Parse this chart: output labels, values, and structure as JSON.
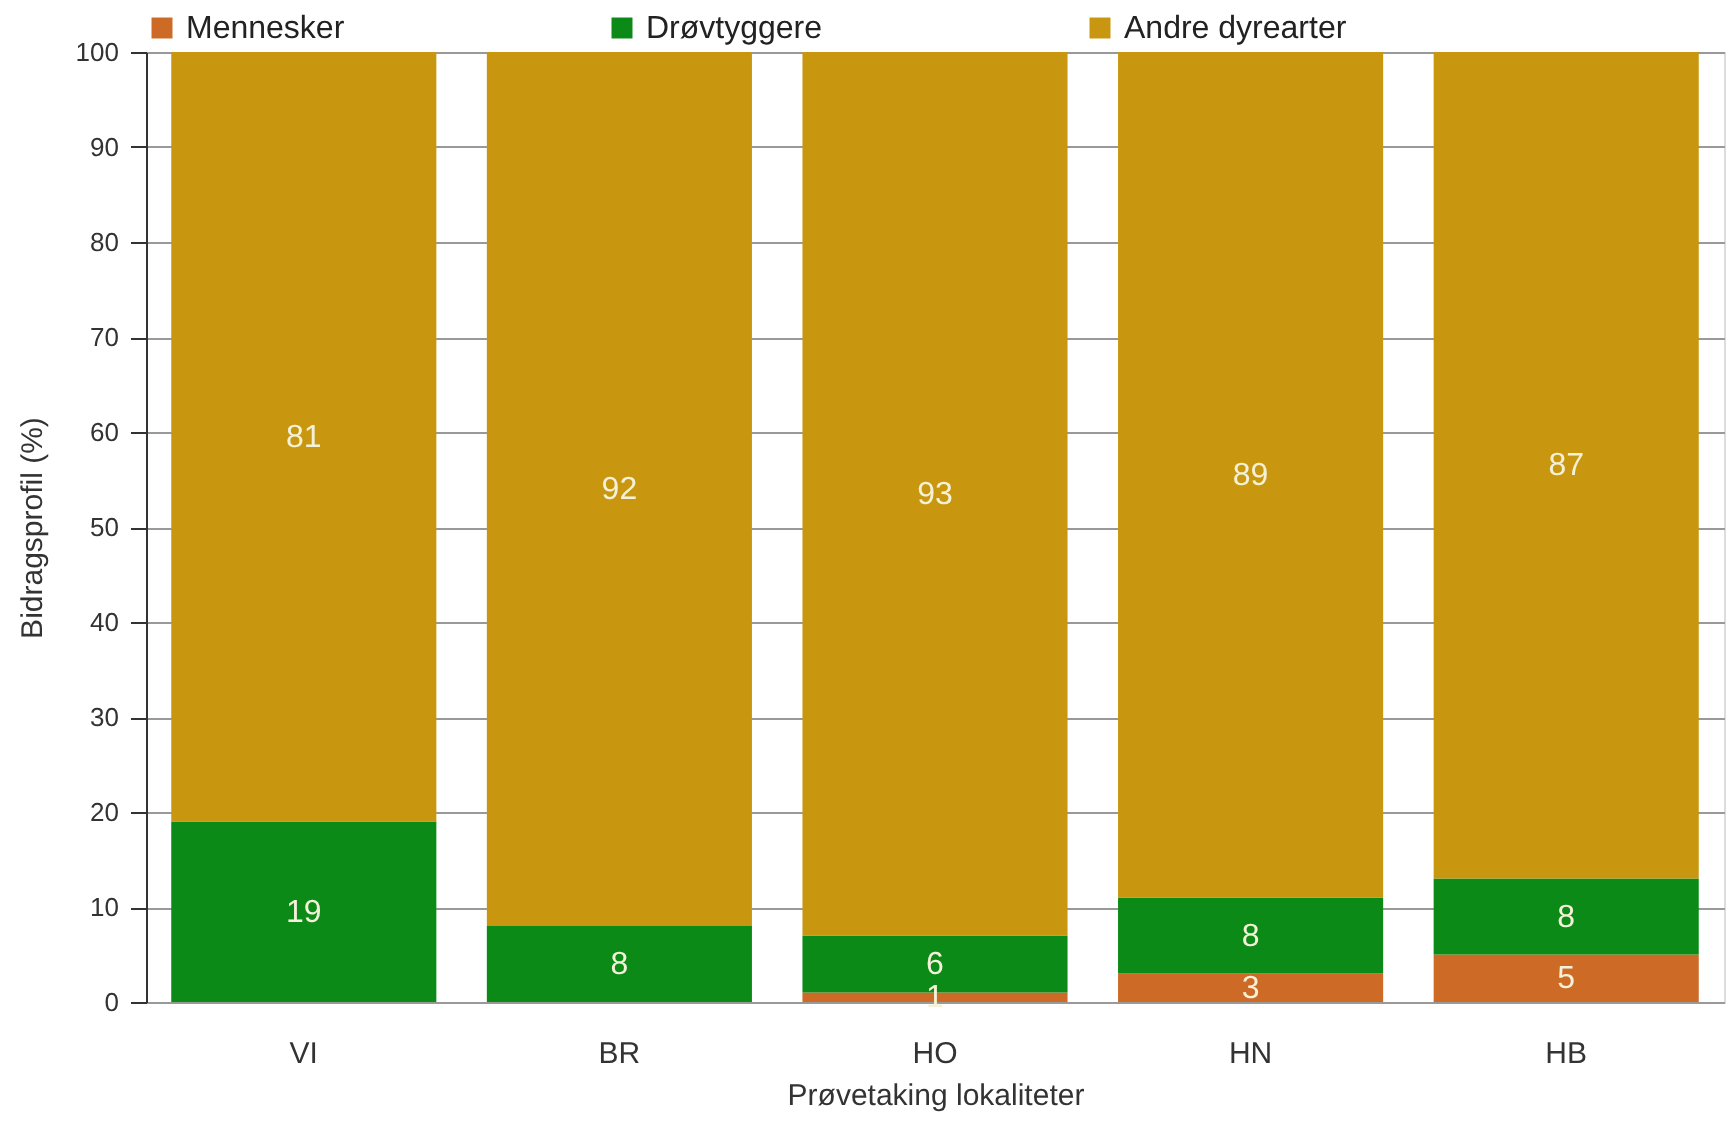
{
  "chart_data": {
    "type": "bar",
    "stacked": true,
    "categories": [
      "VI",
      "BR",
      "HO",
      "HN",
      "HB"
    ],
    "series": [
      {
        "name": "Mennesker",
        "color": "#cc6a26",
        "values": [
          null,
          null,
          1,
          3,
          5
        ]
      },
      {
        "name": "Drøvtyggere",
        "color": "#0b8a17",
        "values": [
          19,
          8,
          6,
          8,
          8
        ]
      },
      {
        "name": "Andre dyrearter",
        "color": "#c9970f",
        "values": [
          81,
          92,
          93,
          89,
          87
        ]
      }
    ],
    "xlabel": "Prøvetaking lokaliteter",
    "ylabel": "Bidragsprofil (%)",
    "ylim": [
      0,
      100
    ],
    "yticks": [
      0,
      10,
      20,
      30,
      40,
      50,
      60,
      70,
      80,
      90,
      100
    ],
    "grid": "y",
    "legend": "top",
    "data_labels": true
  }
}
